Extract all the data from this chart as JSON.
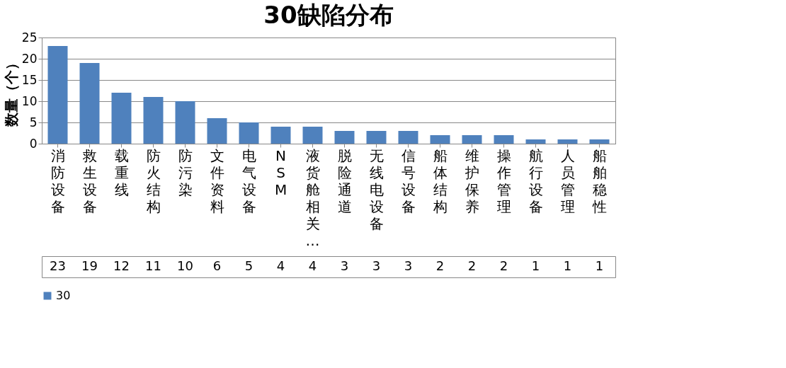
{
  "chart_data": {
    "type": "bar",
    "title": "30缺陷分布",
    "ylabel": "数量（个）",
    "categories": [
      "消防设备",
      "救生设备",
      "载重线",
      "防火结构",
      "防污染",
      "文件资料",
      "电气设备",
      "NSM",
      "液货舱相关…",
      "脱险通道",
      "无线电设备",
      "信号设备",
      "船体结构",
      "维护保养",
      "操作管理",
      "航行设备",
      "人员管理",
      "船舶稳性"
    ],
    "series": [
      {
        "name": "30",
        "color": "#4f81bd",
        "values": [
          23,
          19,
          12,
          11,
          10,
          6,
          5,
          4,
          4,
          3,
          3,
          3,
          2,
          2,
          2,
          1,
          1,
          1
        ]
      }
    ],
    "ylim": [
      0,
      25
    ],
    "yticks": [
      0,
      5,
      10,
      15,
      20,
      25
    ],
    "grid": "y",
    "legend": "bottom",
    "data_labels": true
  }
}
